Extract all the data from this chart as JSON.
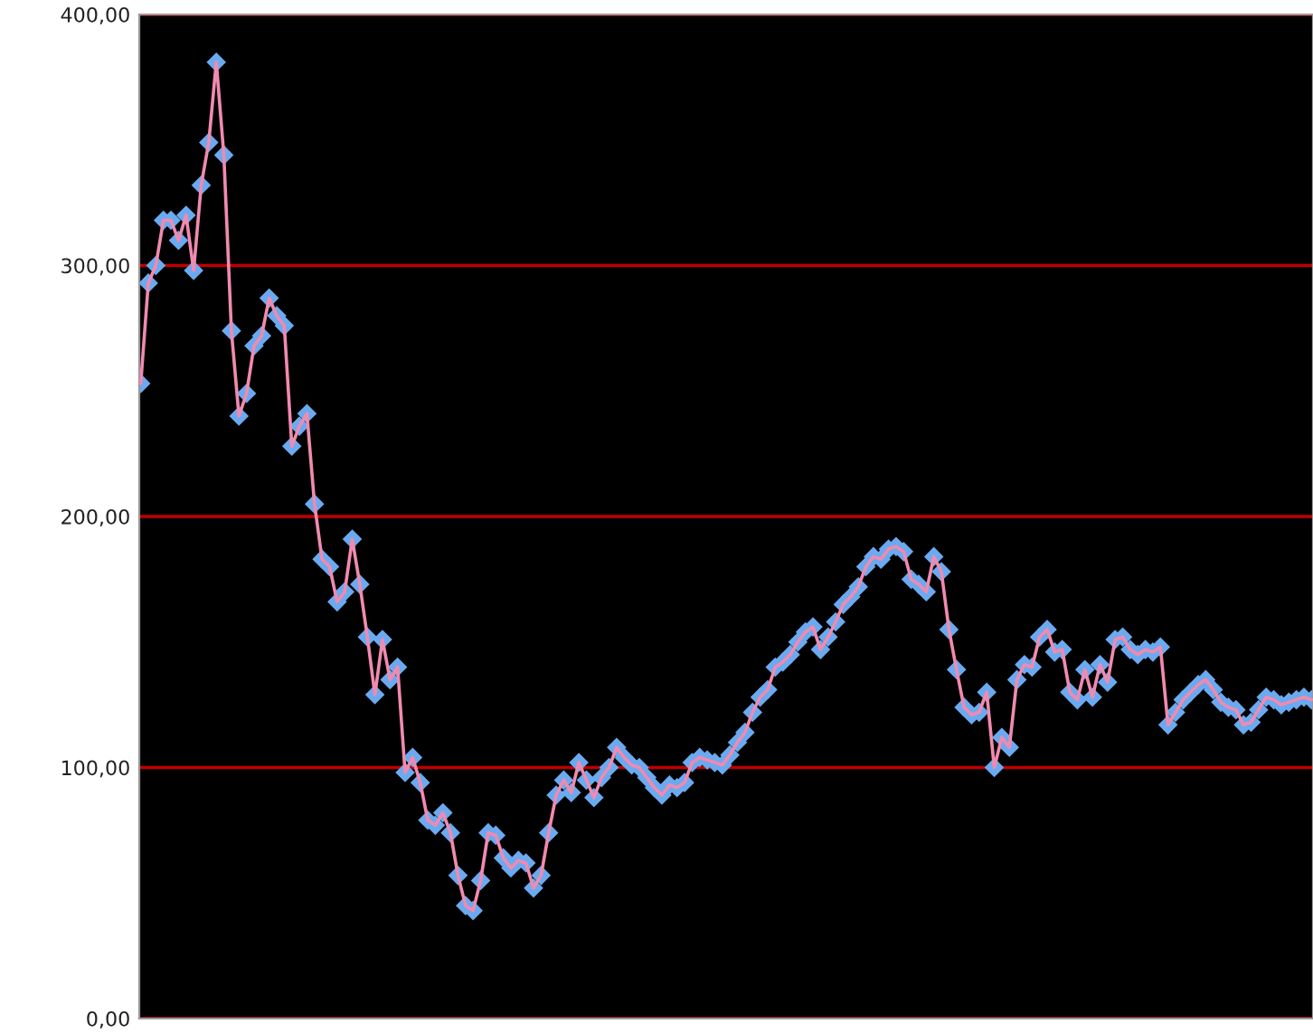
{
  "chart_data": {
    "type": "line",
    "categories": [
      null,
      null,
      null,
      null,
      null,
      null,
      null,
      null,
      null,
      null,
      null,
      null,
      null,
      null,
      null,
      null,
      null,
      null,
      null,
      null,
      null,
      null,
      null,
      null,
      null,
      null,
      null,
      null,
      null,
      null,
      null,
      null,
      null,
      null,
      null,
      null,
      null,
      null,
      null,
      null,
      null,
      null,
      null,
      null,
      null,
      null,
      null,
      null,
      null,
      null,
      null,
      null,
      null,
      null,
      null,
      null,
      null,
      null,
      null,
      null,
      null,
      null,
      null,
      null,
      null,
      null,
      null,
      null,
      null,
      null,
      null,
      null,
      null,
      null,
      null,
      null,
      null,
      null,
      null,
      null,
      null,
      null,
      null,
      null,
      null,
      null,
      null,
      null,
      null,
      null,
      null,
      null,
      null,
      null,
      null,
      null,
      null,
      null,
      null,
      null,
      null,
      null,
      null,
      null,
      null,
      null,
      null,
      null,
      null,
      null,
      null,
      null,
      null,
      null,
      null,
      null,
      null,
      null,
      null,
      null,
      null,
      null,
      null,
      null,
      null,
      null,
      null,
      null,
      null,
      null,
      null,
      null,
      null,
      null,
      null,
      null,
      null,
      null,
      null,
      null,
      null,
      null,
      null,
      null,
      null,
      null,
      null,
      null,
      null,
      null,
      null,
      null,
      null,
      null,
      null,
      null
    ],
    "series": [
      {
        "color": "#6aaaf0",
        "values": [
          253,
          293,
          300,
          318,
          318,
          310,
          320,
          298,
          332,
          349,
          381,
          344,
          274,
          240,
          249,
          268,
          272,
          287,
          280,
          276,
          228,
          236,
          241,
          205,
          183,
          180,
          166,
          170,
          191,
          173,
          152,
          129,
          151,
          135,
          140,
          98,
          104,
          94,
          79,
          77,
          82,
          74,
          57,
          45,
          43,
          55,
          74,
          73,
          64,
          60,
          63,
          62,
          52,
          57,
          74,
          89,
          95,
          90,
          102,
          95,
          88,
          96,
          100,
          108,
          104,
          101,
          100,
          96,
          92,
          89,
          93,
          92,
          94,
          102,
          104,
          103,
          102,
          101,
          105,
          110,
          114,
          122,
          128,
          131,
          140,
          142,
          145,
          150,
          154,
          156,
          147,
          152,
          158,
          165,
          168,
          172,
          180,
          184,
          183,
          187,
          188,
          186,
          175,
          173,
          170,
          184,
          178,
          155,
          139,
          124,
          121,
          122,
          130,
          100,
          112,
          108,
          135,
          141,
          140,
          152,
          155,
          146,
          147,
          130,
          127,
          139,
          128,
          141,
          134,
          151,
          152,
          147,
          145,
          147,
          146,
          148,
          117,
          122,
          127,
          130,
          133,
          135,
          131,
          126,
          124,
          123,
          117,
          118,
          123,
          128,
          127,
          125,
          126,
          127,
          128,
          127
        ]
      }
    ],
    "ylim": [
      0,
      400
    ],
    "yticks": [
      {
        "value": 0,
        "label": "0,00"
      },
      {
        "value": 100,
        "label": "100,00"
      },
      {
        "value": 200,
        "label": "200,00"
      },
      {
        "value": 300,
        "label": "300,00"
      },
      {
        "value": 400,
        "label": "400,00"
      }
    ],
    "grid": "y",
    "marker": "diamond",
    "line_style": "solid",
    "tick_labels": "y"
  }
}
